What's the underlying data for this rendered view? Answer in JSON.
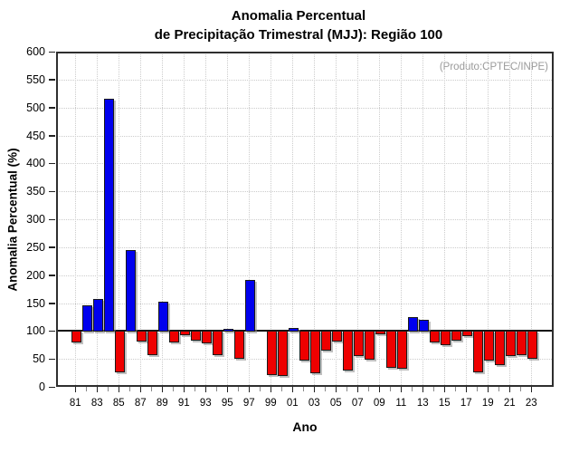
{
  "chart_data": {
    "type": "bar",
    "title_line1": "Anomalia Percentual",
    "title_line2": "de Precipitação Trimestral (MJJ): Região 100",
    "ylabel": "Anomalia Percentual (%)",
    "xlabel": "Ano",
    "annotation": "(Produto:CPTEC/INPE)",
    "ylim": [
      0,
      600
    ],
    "y_ticks": [
      0,
      50,
      100,
      150,
      200,
      250,
      300,
      350,
      400,
      450,
      500,
      550,
      600
    ],
    "baseline": 100,
    "grid": true,
    "legend": "none",
    "x_tick_labels": [
      "81",
      "83",
      "85",
      "87",
      "89",
      "91",
      "93",
      "95",
      "97",
      "99",
      "01",
      "03",
      "05",
      "07",
      "09",
      "11",
      "13",
      "15",
      "17",
      "19",
      "21",
      "23"
    ],
    "years": [
      1981,
      1982,
      1983,
      1984,
      1985,
      1986,
      1987,
      1988,
      1989,
      1990,
      1991,
      1992,
      1993,
      1994,
      1995,
      1996,
      1997,
      1998,
      1999,
      2000,
      2001,
      2002,
      2003,
      2004,
      2005,
      2006,
      2007,
      2008,
      2009,
      2010,
      2011,
      2012,
      2013,
      2014,
      2015,
      2016,
      2017,
      2018,
      2019,
      2020,
      2021,
      2022,
      2023
    ],
    "values": [
      81,
      146,
      157,
      516,
      28,
      245,
      82,
      58,
      152,
      81,
      94,
      85,
      80,
      58,
      104,
      52,
      192,
      100,
      23,
      21,
      106,
      48,
      26,
      66,
      82,
      30,
      57,
      50,
      95,
      35,
      34,
      125,
      120,
      81,
      76,
      85,
      92,
      27,
      49,
      41,
      57,
      58,
      52
    ],
    "colors": {
      "above_baseline": "#0000ee",
      "below_baseline": "#ee0000",
      "baseline_line": "#111111",
      "annotation_text": "#9a9a9a",
      "grid": "#cccccc",
      "frame": "#2e2e2e"
    }
  }
}
